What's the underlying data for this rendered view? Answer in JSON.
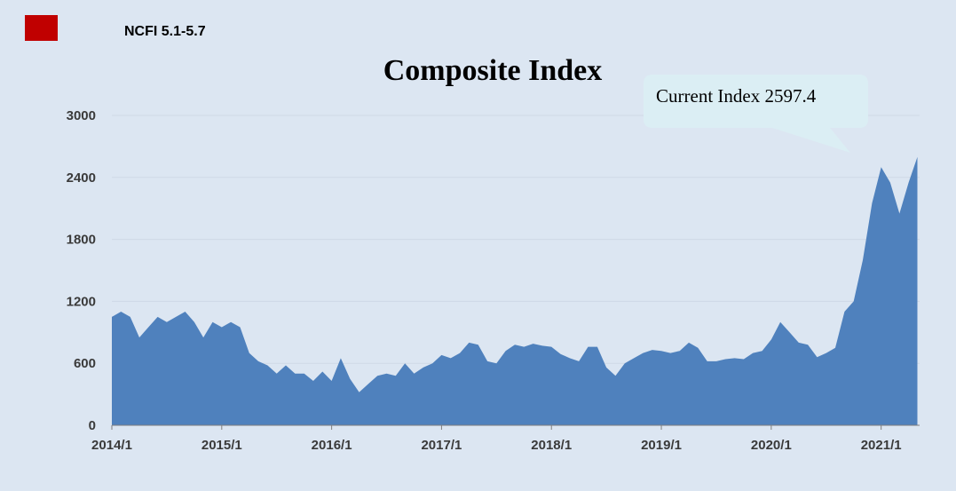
{
  "chart_data": {
    "type": "area",
    "header": "NCFI 5.1-5.7",
    "badge_color": "#c00000",
    "title": "Composite Index",
    "annotation": "Current Index 2597.4",
    "color": "#4f81bd",
    "grid": true,
    "xlim": [
      2014,
      2021.35
    ],
    "ylim": [
      0,
      3000
    ],
    "yticks": [
      0,
      600,
      1200,
      1800,
      2400,
      3000
    ],
    "xticks": [
      {
        "value": 2014,
        "label": "2014/1"
      },
      {
        "value": 2015,
        "label": "2015/1"
      },
      {
        "value": 2016,
        "label": "2016/1"
      },
      {
        "value": 2017,
        "label": "2017/1"
      },
      {
        "value": 2018,
        "label": "2018/1"
      },
      {
        "value": 2019,
        "label": "2019/1"
      },
      {
        "value": 2020,
        "label": "2020/1"
      },
      {
        "value": 2021,
        "label": "2021/1"
      }
    ],
    "x": [
      2014,
      2014.083,
      2014.167,
      2014.25,
      2014.333,
      2014.417,
      2014.5,
      2014.583,
      2014.667,
      2014.75,
      2014.833,
      2014.917,
      2015,
      2015.083,
      2015.167,
      2015.25,
      2015.333,
      2015.417,
      2015.5,
      2015.583,
      2015.667,
      2015.75,
      2015.833,
      2015.917,
      2016,
      2016.083,
      2016.167,
      2016.25,
      2016.333,
      2016.417,
      2016.5,
      2016.583,
      2016.667,
      2016.75,
      2016.833,
      2016.917,
      2017,
      2017.083,
      2017.167,
      2017.25,
      2017.333,
      2017.417,
      2017.5,
      2017.583,
      2017.667,
      2017.75,
      2017.833,
      2017.917,
      2018,
      2018.083,
      2018.167,
      2018.25,
      2018.333,
      2018.417,
      2018.5,
      2018.583,
      2018.667,
      2018.75,
      2018.833,
      2018.917,
      2019,
      2019.083,
      2019.167,
      2019.25,
      2019.333,
      2019.417,
      2019.5,
      2019.583,
      2019.667,
      2019.75,
      2019.833,
      2019.917,
      2020,
      2020.083,
      2020.167,
      2020.25,
      2020.333,
      2020.417,
      2020.5,
      2020.583,
      2020.667,
      2020.75,
      2020.833,
      2020.917,
      2021,
      2021.083,
      2021.167,
      2021.25,
      2021.33
    ],
    "values": [
      1050,
      1100,
      1050,
      850,
      950,
      1050,
      1000,
      1050,
      1100,
      1000,
      850,
      1000,
      950,
      1000,
      950,
      700,
      620,
      580,
      500,
      580,
      500,
      500,
      430,
      520,
      430,
      650,
      450,
      320,
      400,
      480,
      500,
      480,
      600,
      500,
      560,
      600,
      680,
      650,
      700,
      800,
      780,
      620,
      600,
      720,
      780,
      760,
      790,
      770,
      760,
      690,
      650,
      620,
      760,
      760,
      560,
      480,
      600,
      650,
      700,
      730,
      720,
      700,
      720,
      800,
      750,
      620,
      620,
      640,
      650,
      640,
      700,
      720,
      830,
      1000,
      900,
      800,
      780,
      660,
      700,
      750,
      1100,
      1200,
      1600,
      2150,
      2500,
      2350,
      2050,
      2350,
      2597.4
    ]
  }
}
